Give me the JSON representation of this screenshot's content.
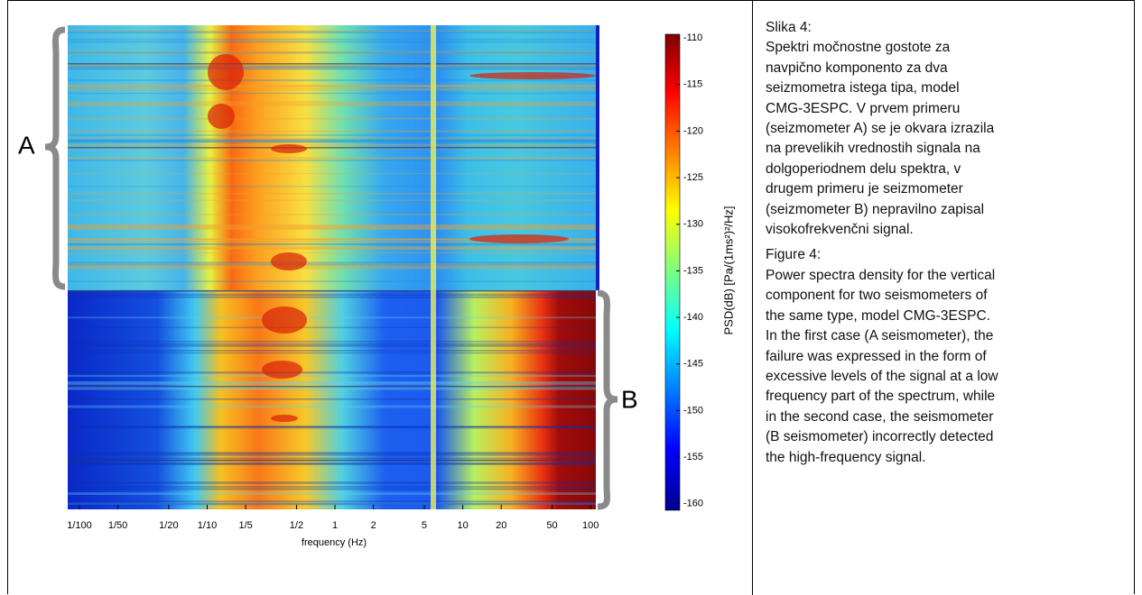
{
  "chart_data": {
    "type": "heatmap",
    "xlabel": "frequency (Hz)",
    "xscale": "log",
    "xlim": [
      0.0081,
      110
    ],
    "xticks": [
      {
        "value": 0.01,
        "label": "1/100"
      },
      {
        "value": 0.02,
        "label": "1/50"
      },
      {
        "value": 0.05,
        "label": "1/20"
      },
      {
        "value": 0.1,
        "label": "1/10"
      },
      {
        "value": 0.2,
        "label": "1/5"
      },
      {
        "value": 0.5,
        "label": "1/2"
      },
      1,
      2,
      5,
      10,
      20,
      50,
      100
    ],
    "colorbar": {
      "label": "PSD(dB) [Pa/(1ms²)²/Hz]",
      "lim": [
        -160.7,
        -109.6
      ],
      "ticks": [
        -110,
        -115,
        -120,
        -125,
        -130,
        -135,
        -140,
        -145,
        -150,
        -155,
        -160
      ]
    },
    "annotations": [
      "A",
      "B"
    ]
  },
  "caption_sl": {
    "label": "Slika 4:",
    "lines": [
      "Spektri močnostne gostote za",
      "navpično komponento za dva",
      "seizmometra istega tipa, model",
      "CMG-3ESPC. V prvem primeru",
      "(seizmometer A) se je okvara izrazila",
      "na prevelikih vrednostih signala na",
      "dolgoperiodnem delu spektra, v",
      "drugem primeru je seizmometer",
      "(seizmometer B) nepravilno zapisal",
      "visokofrekvenčni signal."
    ]
  },
  "caption_en": {
    "label": "Figure 4:",
    "lines": [
      "Power spectra density for the vertical",
      "component for two seismometers of",
      "the same type, model CMG-3ESPC.",
      "In the first case (A seismometer), the",
      "failure was expressed in the form of",
      "excessive levels of the signal at a low",
      "frequency part of the spectrum, while",
      "in the second case, the seismometer",
      "(B seismometer) incorrectly detected",
      "the high-frequency signal."
    ]
  }
}
